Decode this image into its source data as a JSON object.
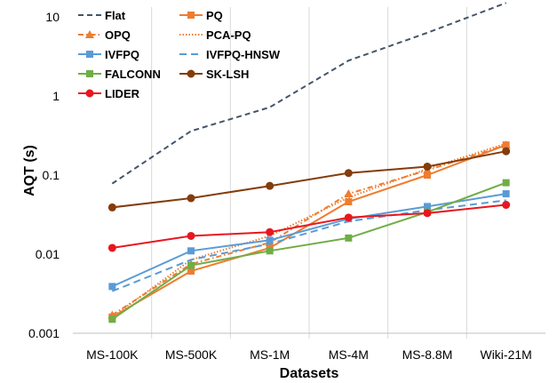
{
  "chart_data": {
    "type": "line",
    "xlabel": "Datasets",
    "ylabel": "AQT (s)",
    "yscale": "log",
    "ylim": [
      0.001,
      15
    ],
    "grid": "vertical category separators",
    "legend_placement": "top-left, inside plot",
    "categories": [
      "MS-100K",
      "MS-500K",
      "MS-1M",
      "MS-4M",
      "MS-8.8M",
      "Wiki-21M"
    ],
    "y_ticks": [
      {
        "value": 0.001,
        "label": "0.001"
      },
      {
        "value": 0.01,
        "label": "0.01"
      },
      {
        "value": 0.1,
        "label": "0.1"
      },
      {
        "value": 1,
        "label": "1"
      },
      {
        "value": 10,
        "label": "10"
      }
    ],
    "series": [
      {
        "name": "Flat",
        "color": "#44546a",
        "dash": "6,4",
        "marker": "none",
        "values": [
          0.078,
          0.36,
          0.72,
          2.8,
          6.3,
          15
        ]
      },
      {
        "name": "PQ",
        "color": "#ed7d31",
        "dash": "",
        "marker": "square",
        "values": [
          0.0016,
          0.0061,
          0.012,
          0.046,
          0.1,
          0.24
        ]
      },
      {
        "name": "OPQ",
        "color": "#ed7d31",
        "dash": "6,3,1.5,3",
        "marker": "triangle",
        "values": [
          0.0017,
          0.0075,
          0.014,
          0.058,
          0.115,
          0.24
        ]
      },
      {
        "name": "PCA-PQ",
        "color": "#ed7d31",
        "dash": "1.5,2",
        "marker": "none",
        "values": [
          0.0016,
          0.0085,
          0.017,
          0.052,
          0.12,
          0.25
        ]
      },
      {
        "name": "IVFPQ",
        "color": "#5b9bd5",
        "dash": "",
        "marker": "square",
        "values": [
          0.0039,
          0.011,
          0.015,
          0.028,
          0.04,
          0.058
        ]
      },
      {
        "name": "IVFPQ-HNSW",
        "color": "#5b9bd5",
        "dash": "8,5",
        "marker": "none",
        "values": [
          0.0034,
          0.0085,
          0.0135,
          0.026,
          0.036,
          0.048
        ]
      },
      {
        "name": "FALCONN",
        "color": "#70ad47",
        "dash": "",
        "marker": "square",
        "values": [
          0.0015,
          0.0072,
          0.011,
          0.016,
          0.034,
          0.08
        ]
      },
      {
        "name": "SK-LSH",
        "color": "#843c0c",
        "dash": "",
        "marker": "circle",
        "values": [
          0.039,
          0.051,
          0.073,
          0.106,
          0.128,
          0.2
        ]
      },
      {
        "name": "LIDER",
        "color": "#e8171f",
        "dash": "",
        "marker": "circle",
        "values": [
          0.012,
          0.017,
          0.019,
          0.029,
          0.033,
          0.042
        ]
      }
    ]
  }
}
